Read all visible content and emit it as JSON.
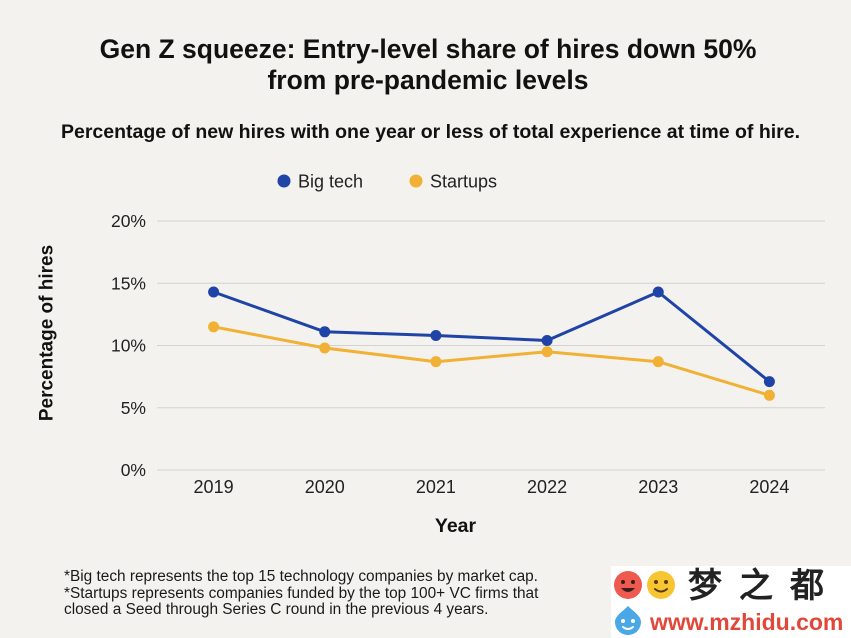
{
  "colors": {
    "background": "#f4f2ee",
    "text": "#111111",
    "grid": "#d2d2d2",
    "watermark_bg": "#ffffff",
    "watermark_url": "#e2483a"
  },
  "chart_data": {
    "type": "line",
    "title": "Gen Z squeeze: Entry-level share of hires down 50% from pre-pandemic levels",
    "subtitle": "Percentage of new hires with one year or less of total experience at time of hire.",
    "categories": [
      "2019",
      "2020",
      "2021",
      "2022",
      "2023",
      "2024"
    ],
    "series": [
      {
        "name": "Big tech",
        "color": "#1f43a6",
        "values": [
          14.3,
          11.1,
          10.8,
          10.4,
          14.3,
          7.1
        ]
      },
      {
        "name": "Startups",
        "color": "#f0b135",
        "values": [
          11.5,
          9.8,
          8.7,
          9.5,
          8.7,
          6.0
        ]
      }
    ],
    "xlabel": "Year",
    "ylabel": "Percentage of hires",
    "ylim": [
      0,
      20
    ],
    "yticks": [
      0,
      5,
      10,
      15,
      20
    ],
    "ytick_labels": [
      "0%",
      "5%",
      "10%",
      "15%",
      "20%"
    ],
    "grid": true,
    "legend_position": "top-center"
  },
  "footnotes": [
    "*Big tech represents the top 15 technology companies by market cap.",
    "*Startups represents companies funded by the top 100+ VC firms that closed a Seed through Series C round in the previous 4 years."
  ],
  "watermark": {
    "brand": "梦之都",
    "url": "www.mzhidu.com",
    "icons": [
      "red-face-icon",
      "yellow-face-icon",
      "blue-face-icon"
    ]
  }
}
